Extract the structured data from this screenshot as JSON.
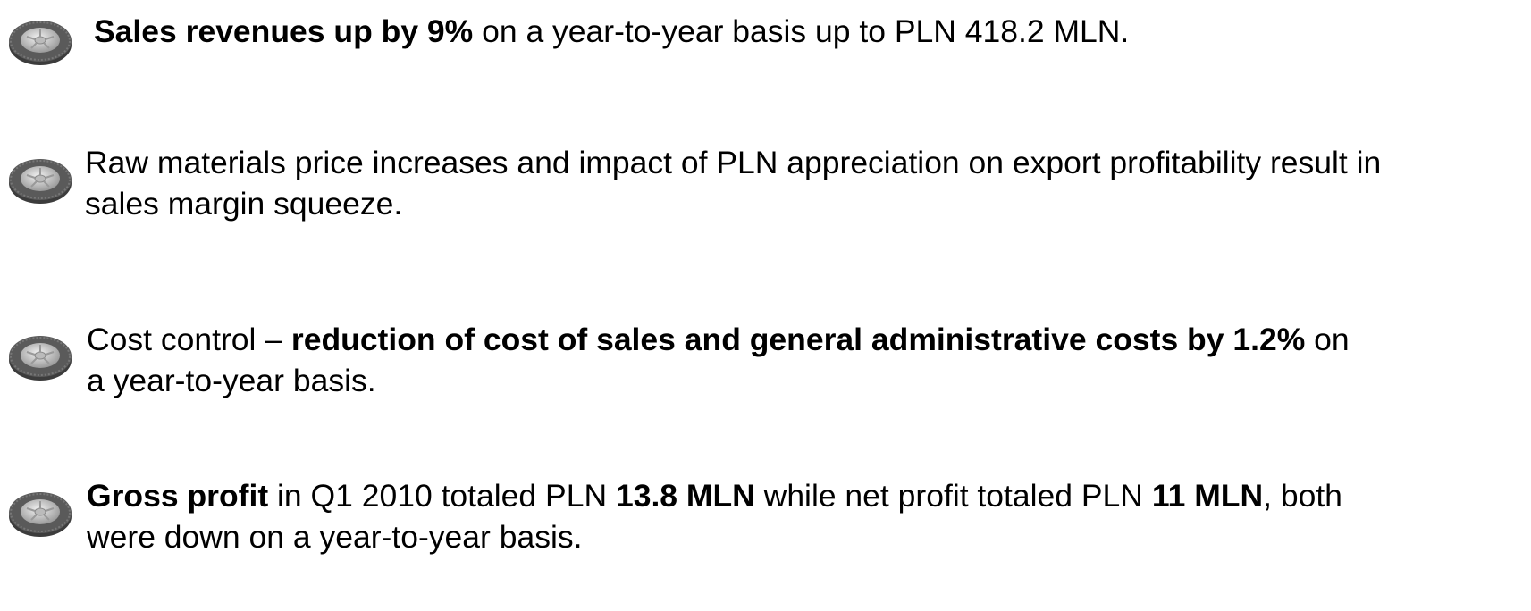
{
  "bullets": [
    {
      "runs": [
        {
          "text": "Sales revenues up by 9%",
          "bold": true
        },
        {
          "text": " on a year-to-year basis up to PLN 418.2 MLN.",
          "bold": false
        }
      ]
    },
    {
      "runs": [
        {
          "text": "Raw materials price increases and impact of PLN appreciation on export profitability result in sales margin squeeze.",
          "bold": false
        }
      ]
    },
    {
      "runs": [
        {
          "text": "Cost control – ",
          "bold": false
        },
        {
          "text": "reduction of cost of sales and general administrative costs by 1.2%",
          "bold": true
        },
        {
          "text": " on a year-to-year basis.",
          "bold": false
        }
      ]
    },
    {
      "runs": [
        {
          "text": "Gross profit",
          "bold": true
        },
        {
          "text": " in Q1 2010 totaled PLN ",
          "bold": false
        },
        {
          "text": "13.8 MLN",
          "bold": true
        },
        {
          "text": " while net profit totaled PLN ",
          "bold": false
        },
        {
          "text": "11 MLN",
          "bold": true
        },
        {
          "text": ", both were down on a year-to-year basis.",
          "bold": false
        }
      ]
    }
  ]
}
